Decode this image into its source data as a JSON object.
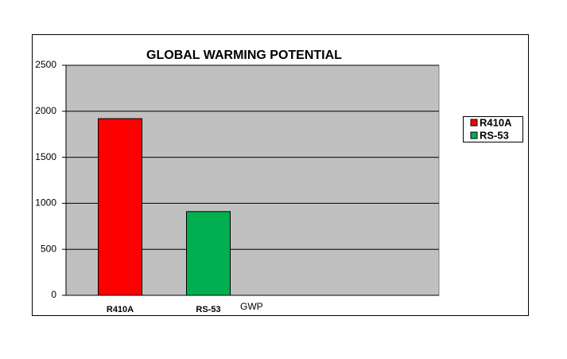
{
  "chart_data": {
    "type": "bar",
    "title": "GLOBAL WARMING POTENTIAL",
    "categories": [
      "R410A",
      "RS-53"
    ],
    "values": [
      1920,
      910
    ],
    "colors": [
      "#ff0000",
      "#00b050"
    ],
    "x_label": "GWP",
    "ylim": [
      0,
      2500
    ],
    "yticks": [
      0,
      500,
      1000,
      1500,
      2000,
      2500
    ],
    "grid": true,
    "legend": "right"
  }
}
